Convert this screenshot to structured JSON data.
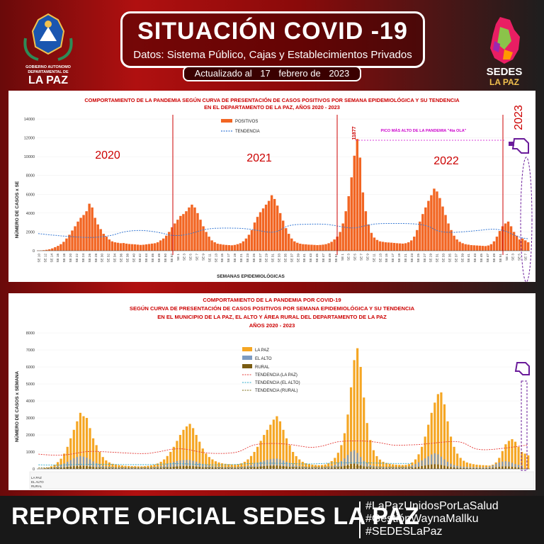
{
  "header": {
    "title": "SITUACIÓN COVID -19",
    "subtitle": "Datos: Sistema Público, Cajas y Establecimientos Privados",
    "updated_prefix": "Actualizado al",
    "updated_day": "17",
    "updated_month": "febrero de",
    "updated_year": "2023",
    "logo_left_lines": [
      "GOBIERNO AUTONOMO",
      "DEPARTAMENTAL DE",
      "LA PAZ"
    ],
    "logo_right_lines": [
      "SEDES",
      "LA PAZ"
    ]
  },
  "footer": {
    "title": "REPORTE OFICIAL SEDES LA PAZ",
    "hashtags": [
      "#LaPazUnidosPorLaSalud",
      "#GestiónWaynaMallku",
      "#SEDESLaPaz"
    ]
  },
  "colors": {
    "bar_orange": "#f26522",
    "bar_lapaz": "#f5a623",
    "bar_elalto": "#7d9bc1",
    "bar_rural": "#7a5c12",
    "trend_red": "#e53935",
    "marker_red": "#cc0000",
    "annot_magenta": "#cc00cc"
  },
  "chart_data": [
    {
      "type": "bar",
      "title": "COMPORTAMIENTO DE LA PANDEMIA SEGÚN CURVA DE PRESENTACIÓN DE CASOS POSITIVOS POR SEMANA EPIDEMIOLÓGICA Y SU TENDENCIA",
      "subtitle": "EN EL DEPARTAMENTO DE LA PAZ, AÑOS 2020 - 2023",
      "xlabel": "SEMANAS EPIDEMIOLÓGICAS",
      "ylabel": "NÚMERO DE CASOS x SE",
      "ylim": [
        0,
        14000
      ],
      "yticks": [
        0,
        2000,
        4000,
        6000,
        8000,
        10000,
        12000,
        14000
      ],
      "year_labels": [
        "2020",
        "2021",
        "2022",
        "2023"
      ],
      "annotation": "PICO MÁS ALTO DE LA PANDEMIA \"4ta OLA\"",
      "peak_label": "11877",
      "xtick_labels": [
        "SE 10",
        "SE 12",
        "SE 14",
        "SE 16",
        "SE 18",
        "SE 20",
        "SE 22",
        "SE 24",
        "SE 26",
        "SE 28",
        "SE 30",
        "SE 32",
        "SE 34",
        "SE 36",
        "SE 38",
        "SE 40",
        "SE 42",
        "SE 44",
        "SE 46",
        "SE 48",
        "SE 50",
        "SE 52",
        "SE 1",
        "SE 3",
        "SE 5",
        "SE 7",
        "SE 9",
        "SE 11",
        "SE 13",
        "SE 15",
        "SE 17",
        "SE 19",
        "SE 21",
        "SE 23",
        "SE 25",
        "SE 27",
        "SE 29",
        "SE 31",
        "SE 33",
        "SE 35",
        "SE 37",
        "SE 39",
        "SE 41",
        "SE 43",
        "SE 45",
        "SE 47",
        "SE 49",
        "SE 51",
        "SE 1",
        "SE 3",
        "SE 5",
        "SE 7",
        "SE 9",
        "SE 11",
        "SE 13",
        "SE 15",
        "SE 17",
        "SE 19",
        "SE 21",
        "SE 23",
        "SE 25",
        "SE 27",
        "SE 29",
        "SE 31",
        "SE 33",
        "SE 35",
        "SE 37",
        "SE 39",
        "SE 41",
        "SE 43",
        "SE 45",
        "SE 47",
        "SE 49",
        "SE 51",
        "SE 1",
        "SE 3",
        "SE 5",
        "SE 7"
      ],
      "series": [
        {
          "name": "POSITIVOS",
          "values": [
            20,
            30,
            60,
            100,
            160,
            250,
            380,
            520,
            700,
            950,
            1300,
            1700,
            2150,
            2600,
            3100,
            3500,
            3800,
            4200,
            5000,
            4600,
            3500,
            2800,
            2300,
            1800,
            1500,
            1200,
            1000,
            900,
            850,
            800,
            820,
            760,
            720,
            700,
            680,
            650,
            620,
            640,
            680,
            720,
            760,
            800,
            900,
            1100,
            1300,
            1600,
            2000,
            2500,
            2900,
            3300,
            3700,
            3900,
            4200,
            4600,
            4900,
            4600,
            4000,
            3300,
            2600,
            2000,
            1500,
            1100,
            900,
            750,
            700,
            650,
            620,
            600,
            580,
            620,
            700,
            800,
            1000,
            1300,
            1700,
            2200,
            3000,
            3600,
            4100,
            4500,
            4900,
            5300,
            5900,
            5500,
            4800,
            4000,
            3200,
            2400,
            1800,
            1300,
            1000,
            850,
            750,
            700,
            680,
            650,
            640,
            620,
            600,
            620,
            650,
            700,
            800,
            950,
            1200,
            1500,
            2000,
            2900,
            4200,
            5800,
            7800,
            10100,
            11877,
            9900,
            6200,
            4200,
            2800,
            1900,
            1400,
            1150,
            1000,
            950,
            900,
            880,
            860,
            830,
            800,
            780,
            760,
            800,
            900,
            1100,
            1500,
            2200,
            3100,
            3900,
            4600,
            5300,
            5900,
            6600,
            6300,
            5600,
            4700,
            3800,
            2900,
            2200,
            1600,
            1200,
            950,
            800,
            700,
            650,
            600,
            580,
            560,
            540,
            520,
            500,
            560,
            700,
            1000,
            1500,
            2100,
            2600,
            2900,
            3100,
            2600,
            2000,
            1600,
            1200,
            1300,
            1100,
            900
          ]
        },
        {
          "name": "TENDENCIA",
          "values": []
        }
      ]
    },
    {
      "type": "bar",
      "title": "COMPORTAMIENTO DE LA PANDEMIA POR COVID-19",
      "subtitle_lines": [
        "SEGÚN CURVA DE PRESENTACIÓN DE CASOS POSITIVOS POR SEMANA EPIDEMIOLÓGICA Y SU TENDENCIA",
        "EN EL  MUNICIPIO DE LA PAZ, EL ALTO Y ÁREA RURAL DEL DEPARTAMENTO DE LA PAZ",
        "AÑOS 2020 - 2023"
      ],
      "ylabel": "NÚMERO DE CASOS x SEMANA",
      "ylim": [
        0,
        8000
      ],
      "yticks": [
        0,
        1000,
        2000,
        3000,
        4000,
        5000,
        6000,
        7000,
        8000
      ],
      "table_row_labels": [
        "LA PAZ",
        "EL ALTO",
        "RURAL"
      ],
      "legend": [
        "LA PAZ",
        "EL ALTO",
        "RURAL",
        "TENDENCIA (LA PAZ)",
        "TENDENCIA (EL ALTO)",
        "TENDENCIA (RURAL)"
      ],
      "series": [
        {
          "name": "LA PAZ",
          "values": [
            10,
            20,
            40,
            80,
            150,
            250,
            400,
            600,
            900,
            1300,
            1800,
            2300,
            2800,
            3300,
            3100,
            3000,
            2400,
            1800,
            1400,
            1000,
            700,
            500,
            380,
            300,
            260,
            220,
            200,
            180,
            170,
            160,
            160,
            150,
            150,
            160,
            180,
            210,
            250,
            320,
            420,
            560,
            760,
            1000,
            1300,
            1650,
            2000,
            2300,
            2500,
            2650,
            2400,
            2000,
            1600,
            1200,
            900,
            700,
            560,
            450,
            380,
            330,
            300,
            280,
            270,
            260,
            280,
            330,
            420,
            560,
            760,
            1000,
            1300,
            1650,
            2000,
            2300,
            2600,
            2900,
            3100,
            2800,
            2300,
            1800,
            1400,
            1000,
            750,
            560,
            420,
            330,
            280,
            250,
            230,
            220,
            230,
            260,
            330,
            460,
            650,
            950,
            1400,
            2100,
            3200,
            4800,
            6400,
            7100,
            6000,
            4200,
            2700,
            1700,
            1100,
            750,
            550,
            420,
            350,
            300,
            270,
            250,
            240,
            230,
            240,
            280,
            380,
            560,
            860,
            1300,
            1900,
            2600,
            3300,
            3900,
            4400,
            4500,
            3800,
            2800,
            1900,
            1300,
            900,
            650,
            480,
            380,
            320,
            280,
            250,
            230,
            220,
            210,
            200,
            250,
            380,
            650,
            1050,
            1450,
            1650,
            1750,
            1600,
            1300,
            1000,
            900,
            800
          ]
        },
        {
          "name": "EL ALTO",
          "values": [
            5,
            10,
            20,
            40,
            70,
            110,
            170,
            240,
            320,
            420,
            520,
            620,
            700,
            760,
            720,
            660,
            560,
            440,
            340,
            260,
            200,
            160,
            130,
            110,
            100,
            90,
            85,
            80,
            78,
            76,
            76,
            74,
            74,
            76,
            82,
            92,
            110,
            140,
            180,
            230,
            290,
            350,
            410,
            460,
            500,
            520,
            530,
            520,
            480,
            420,
            350,
            290,
            240,
            200,
            170,
            150,
            135,
            125,
            118,
            112,
            110,
            108,
            112,
            125,
            150,
            190,
            240,
            300,
            360,
            420,
            480,
            530,
            570,
            600,
            610,
            570,
            500,
            420,
            350,
            280,
            220,
            175,
            145,
            125,
            112,
            105,
            100,
            98,
            100,
            110,
            135,
            180,
            250,
            340,
            460,
            620,
            820,
            1020,
            1100,
            940,
            700,
            480,
            330,
            240,
            185,
            150,
            130,
            118,
            110,
            104,
            100,
            98,
            96,
            100,
            115,
            150,
            210,
            290,
            390,
            500,
            620,
            740,
            850,
            920,
            860,
            720,
            560,
            420,
            310,
            230,
            180,
            150,
            130,
            118,
            110,
            104,
            100,
            96,
            92,
            104,
            140,
            210,
            300,
            380,
            430,
            450,
            420,
            360,
            290,
            240,
            210
          ]
        },
        {
          "name": "RURAL",
          "values": [
            2,
            4,
            8,
            14,
            22,
            34,
            50,
            70,
            90,
            115,
            140,
            160,
            175,
            185,
            178,
            165,
            142,
            115,
            92,
            72,
            58,
            48,
            40,
            35,
            32,
            30,
            28,
            27,
            26,
            25,
            25,
            25,
            25,
            26,
            28,
            31,
            36,
            44,
            55,
            70,
            88,
            108,
            128,
            146,
            160,
            170,
            175,
            172,
            160,
            142,
            120,
            100,
            84,
            72,
            62,
            55,
            50,
            46,
            44,
            42,
            41,
            40,
            42,
            46,
            54,
            66,
            82,
            102,
            124,
            146,
            166,
            182,
            194,
            200,
            198,
            186,
            166,
            144,
            122,
            102,
            84,
            70,
            60,
            52,
            47,
            44,
            42,
            41,
            42,
            45,
            52,
            64,
            82,
            106,
            138,
            180,
            234,
            290,
            310,
            270,
            210,
            150,
            110,
            84,
            66,
            55,
            48,
            44,
            41,
            39,
            38,
            37,
            36,
            38,
            43,
            54,
            72,
            98,
            130,
            166,
            202,
            236,
            262,
            276,
            262,
            228,
            186,
            146,
            112,
            88,
            70,
            58,
            50,
            45,
            41,
            39,
            37,
            36,
            34,
            38,
            50,
            72,
            100,
            126,
            142,
            148,
            140,
            122,
            102,
            86,
            78
          ]
        },
        {
          "name": "TENDENCIA (LA PAZ)",
          "values": []
        },
        {
          "name": "TENDENCIA (EL ALTO)",
          "values": []
        },
        {
          "name": "TENDENCIA (RURAL)",
          "values": []
        }
      ]
    }
  ]
}
